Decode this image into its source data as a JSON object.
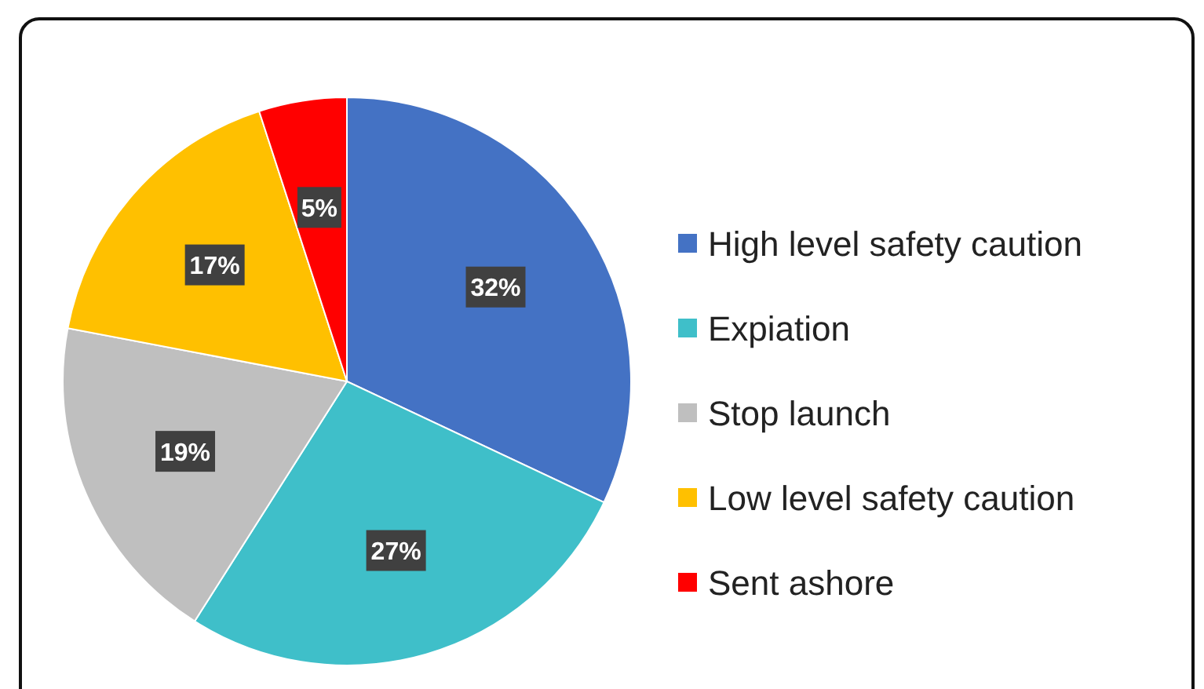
{
  "chart_data": {
    "type": "pie",
    "categories": [
      "High level safety caution",
      "Expiation",
      "Stop launch",
      "Low level safety caution",
      "Sent ashore"
    ],
    "values": [
      32,
      27,
      19,
      17,
      5
    ],
    "colors": [
      "#4472c4",
      "#3fbfc9",
      "#bfbfbf",
      "#ffc000",
      "#ff0000"
    ],
    "value_labels": [
      "32%",
      "27%",
      "19%",
      "17%",
      "5%"
    ],
    "legend": "right"
  }
}
